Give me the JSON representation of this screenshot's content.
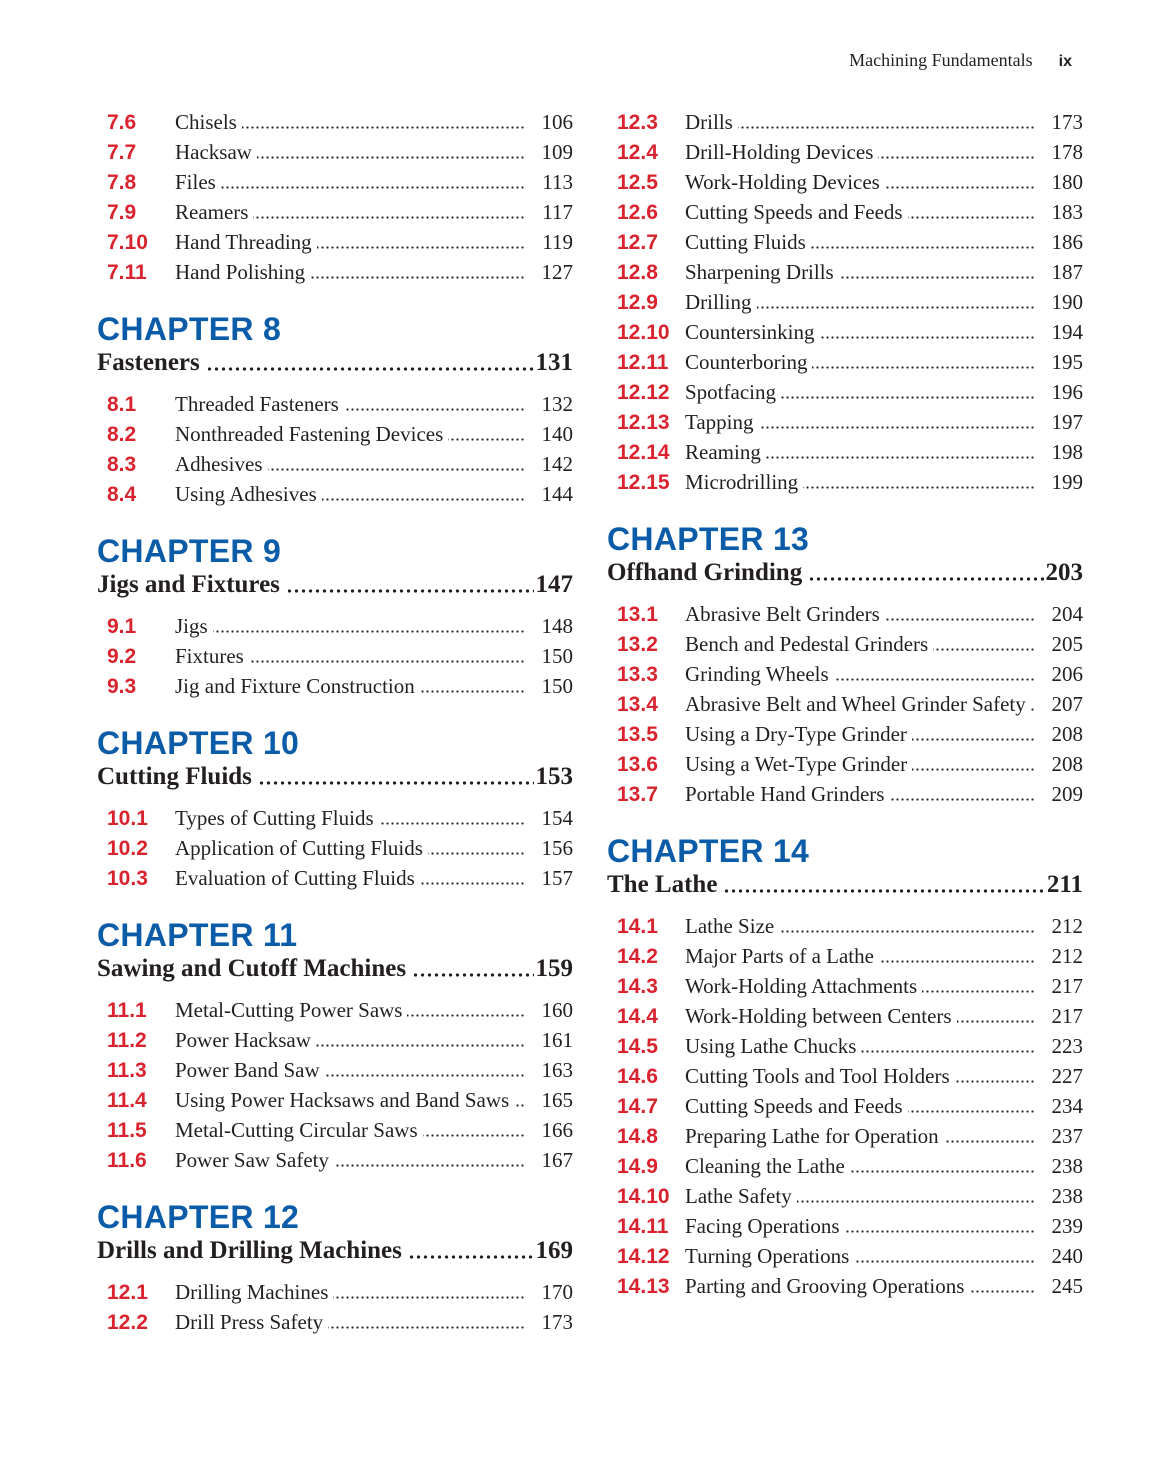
{
  "header": {
    "book_title": "Machining Fundamentals",
    "folio": "ix"
  },
  "colors": {
    "chapter": "#0a5ca8",
    "section_number": "#d9232e",
    "text": "#231f20"
  },
  "columns": [
    {
      "blocks": [
        {
          "entries": [
            {
              "num": "7.6",
              "title": "Chisels",
              "page": "106"
            },
            {
              "num": "7.7",
              "title": "Hacksaw",
              "page": "109"
            },
            {
              "num": "7.8",
              "title": "Files",
              "page": "113"
            },
            {
              "num": "7.9",
              "title": "Reamers",
              "page": "117"
            },
            {
              "num": "7.10",
              "title": "Hand Threading",
              "page": "119"
            },
            {
              "num": "7.11",
              "title": "Hand Polishing",
              "page": "127"
            }
          ]
        },
        {
          "chapter": "CHAPTER 8",
          "title": "Fasteners",
          "page": "131",
          "entries": [
            {
              "num": "8.1",
              "title": "Threaded Fasteners",
              "page": "132"
            },
            {
              "num": "8.2",
              "title": "Nonthreaded Fastening Devices",
              "page": "140"
            },
            {
              "num": "8.3",
              "title": "Adhesives",
              "page": "142"
            },
            {
              "num": "8.4",
              "title": "Using Adhesives",
              "page": "144"
            }
          ]
        },
        {
          "chapter": "CHAPTER 9",
          "title": "Jigs and Fixtures",
          "page": "147",
          "entries": [
            {
              "num": "9.1",
              "title": "Jigs",
              "page": "148"
            },
            {
              "num": "9.2",
              "title": "Fixtures",
              "page": "150"
            },
            {
              "num": "9.3",
              "title": "Jig and Fixture Construction",
              "page": "150"
            }
          ]
        },
        {
          "chapter": "CHAPTER 10",
          "title": "Cutting Fluids",
          "page": "153",
          "entries": [
            {
              "num": "10.1",
              "title": "Types of Cutting Fluids",
              "page": "154"
            },
            {
              "num": "10.2",
              "title": "Application of Cutting Fluids",
              "page": "156"
            },
            {
              "num": "10.3",
              "title": "Evaluation of Cutting Fluids",
              "page": "157"
            }
          ]
        },
        {
          "chapter": "CHAPTER 11",
          "title": "Sawing and Cutoff Machines",
          "page": "159",
          "entries": [
            {
              "num": "11.1",
              "title": "Metal-Cutting Power Saws",
              "page": "160"
            },
            {
              "num": "11.2",
              "title": "Power Hacksaw",
              "page": "161"
            },
            {
              "num": "11.3",
              "title": "Power Band Saw",
              "page": "163"
            },
            {
              "num": "11.4",
              "title": "Using Power Hacksaws and Band Saws",
              "page": "165"
            },
            {
              "num": "11.5",
              "title": "Metal-Cutting Circular Saws",
              "page": "166"
            },
            {
              "num": "11.6",
              "title": "Power Saw Safety",
              "page": "167"
            }
          ]
        },
        {
          "chapter": "CHAPTER 12",
          "title": "Drills and Drilling Machines",
          "page": "169",
          "entries": [
            {
              "num": "12.1",
              "title": "Drilling Machines",
              "page": "170"
            },
            {
              "num": "12.2",
              "title": "Drill Press Safety",
              "page": "173"
            }
          ]
        }
      ]
    },
    {
      "blocks": [
        {
          "entries": [
            {
              "num": "12.3",
              "title": "Drills",
              "page": "173"
            },
            {
              "num": "12.4",
              "title": "Drill-Holding Devices",
              "page": "178"
            },
            {
              "num": "12.5",
              "title": "Work-Holding Devices",
              "page": "180"
            },
            {
              "num": "12.6",
              "title": "Cutting Speeds and Feeds",
              "page": "183"
            },
            {
              "num": "12.7",
              "title": "Cutting Fluids",
              "page": "186"
            },
            {
              "num": "12.8",
              "title": "Sharpening Drills",
              "page": "187"
            },
            {
              "num": "12.9",
              "title": "Drilling",
              "page": "190"
            },
            {
              "num": "12.10",
              "title": "Countersinking",
              "page": "194"
            },
            {
              "num": "12.11",
              "title": "Counterboring",
              "page": "195"
            },
            {
              "num": "12.12",
              "title": "Spotfacing",
              "page": "196"
            },
            {
              "num": "12.13",
              "title": "Tapping",
              "page": "197"
            },
            {
              "num": "12.14",
              "title": "Reaming",
              "page": "198"
            },
            {
              "num": "12.15",
              "title": "Microdrilling",
              "page": "199"
            }
          ]
        },
        {
          "chapter": "CHAPTER 13",
          "title": "Offhand Grinding",
          "page": "203",
          "entries": [
            {
              "num": "13.1",
              "title": "Abrasive Belt Grinders",
              "page": "204"
            },
            {
              "num": "13.2",
              "title": "Bench and Pedestal Grinders",
              "page": "205"
            },
            {
              "num": "13.3",
              "title": "Grinding Wheels",
              "page": "206"
            },
            {
              "num": "13.4",
              "title": "Abrasive Belt and Wheel Grinder Safety",
              "page": "207"
            },
            {
              "num": "13.5",
              "title": "Using a Dry-Type Grinder",
              "page": "208"
            },
            {
              "num": "13.6",
              "title": "Using a Wet-Type Grinder",
              "page": "208"
            },
            {
              "num": "13.7",
              "title": "Portable Hand Grinders",
              "page": "209"
            }
          ]
        },
        {
          "chapter": "CHAPTER 14",
          "title": "The Lathe",
          "page": "211",
          "entries": [
            {
              "num": "14.1",
              "title": "Lathe Size",
              "page": "212"
            },
            {
              "num": "14.2",
              "title": "Major Parts of a Lathe",
              "page": "212"
            },
            {
              "num": "14.3",
              "title": "Work-Holding Attachments",
              "page": "217"
            },
            {
              "num": "14.4",
              "title": "Work-Holding between Centers",
              "page": "217"
            },
            {
              "num": "14.5",
              "title": "Using Lathe Chucks",
              "page": "223"
            },
            {
              "num": "14.6",
              "title": "Cutting Tools and Tool Holders",
              "page": "227"
            },
            {
              "num": "14.7",
              "title": "Cutting Speeds and Feeds",
              "page": "234"
            },
            {
              "num": "14.8",
              "title": "Preparing Lathe for Operation",
              "page": "237"
            },
            {
              "num": "14.9",
              "title": "Cleaning the Lathe",
              "page": "238"
            },
            {
              "num": "14.10",
              "title": "Lathe Safety",
              "page": "238"
            },
            {
              "num": "14.11",
              "title": "Facing Operations",
              "page": "239"
            },
            {
              "num": "14.12",
              "title": "Turning Operations",
              "page": "240"
            },
            {
              "num": "14.13",
              "title": "Parting and Grooving Operations",
              "page": "245"
            }
          ]
        }
      ]
    }
  ]
}
